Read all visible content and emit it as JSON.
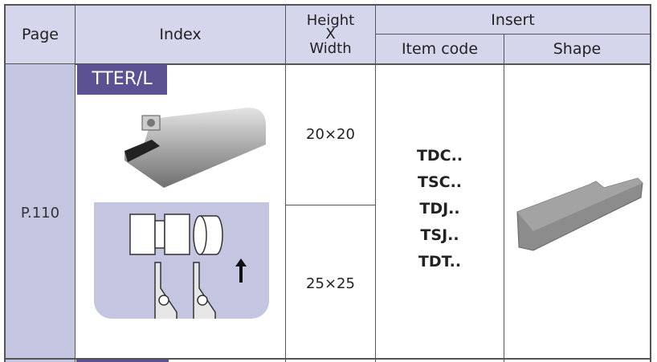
{
  "header": {
    "page": "Page",
    "index": "Index",
    "height_width": [
      "Height",
      "X",
      "Width"
    ],
    "insert": "Insert",
    "item_code": "Item code",
    "shape": "Shape"
  },
  "row": {
    "page": "P.110",
    "index_label": "TTER/L",
    "sizes": [
      "20×20",
      "25×25"
    ],
    "item_codes": [
      "TDC..",
      "TSC..",
      "TDJ..",
      "TSJ..",
      "TDT.."
    ]
  },
  "colors": {
    "header_bg": "#d5d5ec",
    "page_col_bg": "#c3c5e1",
    "label_bg": "#5c5192",
    "diagram_bg": "#c3c5e1"
  }
}
